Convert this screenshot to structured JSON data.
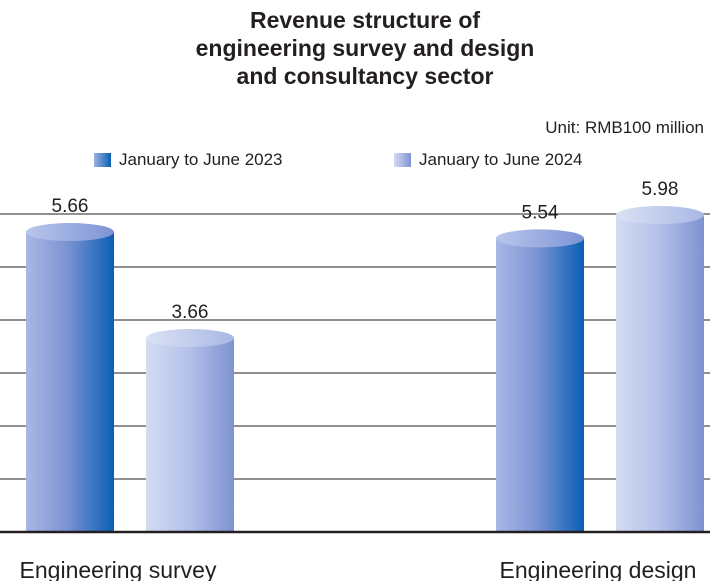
{
  "chart_data": {
    "type": "bar",
    "title_lines": [
      "Revenue structure of",
      "engineering survey and design",
      "and consultancy sector"
    ],
    "unit": "Unit: RMB100 million",
    "categories": [
      "Engineering survey",
      "Engineering design"
    ],
    "series": [
      {
        "name": "January to June 2023",
        "values": [
          5.66,
          5.54
        ],
        "color": "#0a5fb4"
      },
      {
        "name": "January to June 2024",
        "values": [
          3.66,
          5.98
        ],
        "color": "#9aa8dc"
      }
    ],
    "ylim": [
      0,
      6
    ],
    "gridlines": true,
    "legend_position": "top"
  }
}
